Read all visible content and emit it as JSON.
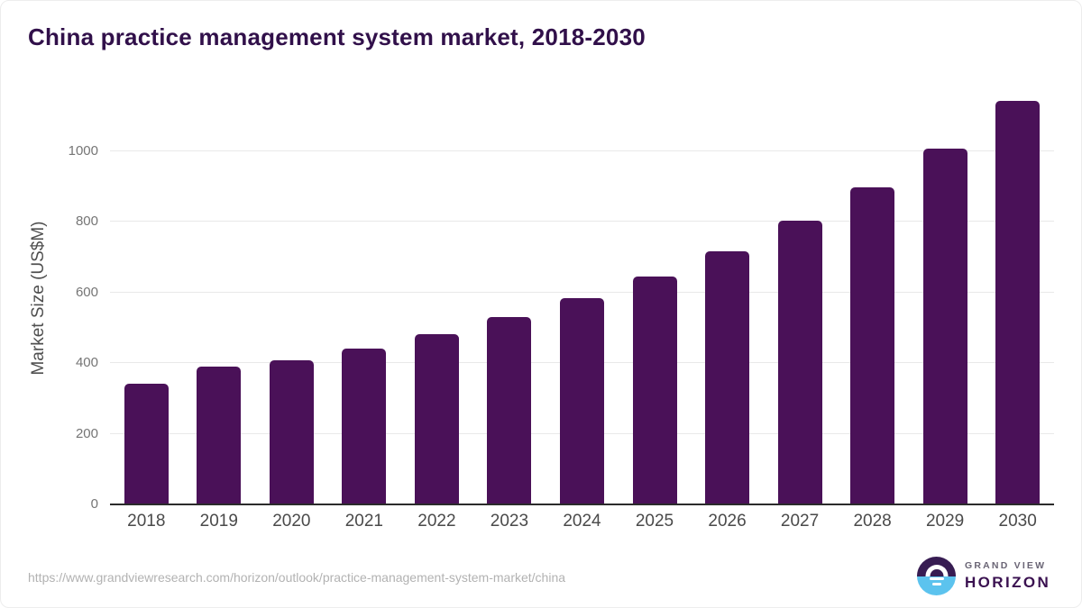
{
  "chart_data": {
    "type": "bar",
    "title": "China practice management system market, 2018-2030",
    "categories": [
      "2018",
      "2019",
      "2020",
      "2021",
      "2022",
      "2023",
      "2024",
      "2025",
      "2026",
      "2027",
      "2028",
      "2029",
      "2030"
    ],
    "values": [
      342,
      390,
      409,
      441,
      482,
      530,
      585,
      646,
      717,
      803,
      898,
      1008,
      1142
    ],
    "xlabel": "",
    "ylabel": "Market Size (US$M)",
    "ylim": [
      0,
      1170
    ],
    "yticks": [
      0,
      200,
      400,
      600,
      800,
      1000
    ],
    "grid": "horizontal gridlines only",
    "legend": "none",
    "bar_color": "#4a1158"
  },
  "footer": {
    "source_url": "https://www.grandviewresearch.com/horizon/outlook/practice-management-system-market/china",
    "logo": {
      "top_text": "GRAND VIEW",
      "bottom_text": "HORIZON"
    }
  },
  "colors": {
    "title": "#31104a",
    "bar": "#4a1158",
    "gridline": "#e9e9e9",
    "axis_line": "#2b2b2b",
    "y_tick_label": "#757575",
    "x_tick_label": "#4a4a4a",
    "source_url": "#b2b2b2",
    "logo_purple": "#371c52",
    "logo_blue": "#5cc3ee"
  }
}
